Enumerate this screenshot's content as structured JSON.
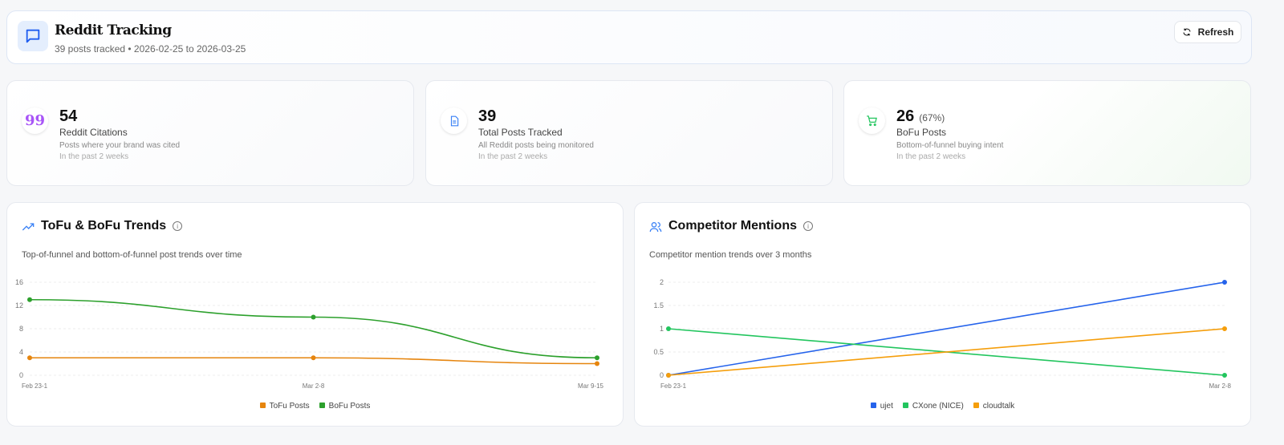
{
  "header": {
    "title": "Reddit Tracking",
    "subtitle": "39 posts tracked • 2026-02-25 to 2026-03-25",
    "refresh_label": "Refresh"
  },
  "stats": [
    {
      "value": "54",
      "percent": "",
      "label": "Reddit Citations",
      "description": "Posts where your brand was cited",
      "period": "In the past 2 weeks",
      "icon": "quote-icon",
      "color": "#a855f7"
    },
    {
      "value": "39",
      "percent": "",
      "label": "Total Posts Tracked",
      "description": "All Reddit posts being monitored",
      "period": "In the past 2 weeks",
      "icon": "document-icon",
      "color": "#3b82f6"
    },
    {
      "value": "26",
      "percent": "(67%)",
      "label": "BoFu Posts",
      "description": "Bottom-of-funnel buying intent",
      "period": "In the past 2 weeks",
      "icon": "cart-icon",
      "color": "#22c55e"
    }
  ],
  "chart_data": [
    {
      "type": "line",
      "title": "ToFu & BoFu Trends",
      "subtitle": "Top-of-funnel and bottom-of-funnel post trends over time",
      "categories": [
        "Feb 23-1",
        "Mar 2-8",
        "Mar 9-15"
      ],
      "ylim": [
        0,
        16
      ],
      "yticks": [
        0,
        4,
        8,
        12,
        16
      ],
      "grid": true,
      "legend": "bottom",
      "series": [
        {
          "name": "ToFu Posts",
          "color": "#e6850e",
          "values": [
            3,
            3,
            2
          ]
        },
        {
          "name": "BoFu Posts",
          "color": "#2ca02c",
          "values": [
            13,
            10,
            3
          ]
        }
      ]
    },
    {
      "type": "line",
      "title": "Competitor Mentions",
      "subtitle": "Competitor mention trends over 3 months",
      "categories": [
        "Feb 23-1",
        "Mar 2-8"
      ],
      "ylim": [
        0,
        2
      ],
      "yticks": [
        0,
        0.5,
        1,
        1.5,
        2
      ],
      "grid": true,
      "legend": "bottom",
      "series": [
        {
          "name": "ujet",
          "color": "#2563eb",
          "values": [
            0,
            2
          ]
        },
        {
          "name": "CXone (NICE)",
          "color": "#22c55e",
          "values": [
            1,
            0
          ]
        },
        {
          "name": "cloudtalk",
          "color": "#f59e0b",
          "values": [
            0,
            1
          ]
        }
      ]
    }
  ]
}
